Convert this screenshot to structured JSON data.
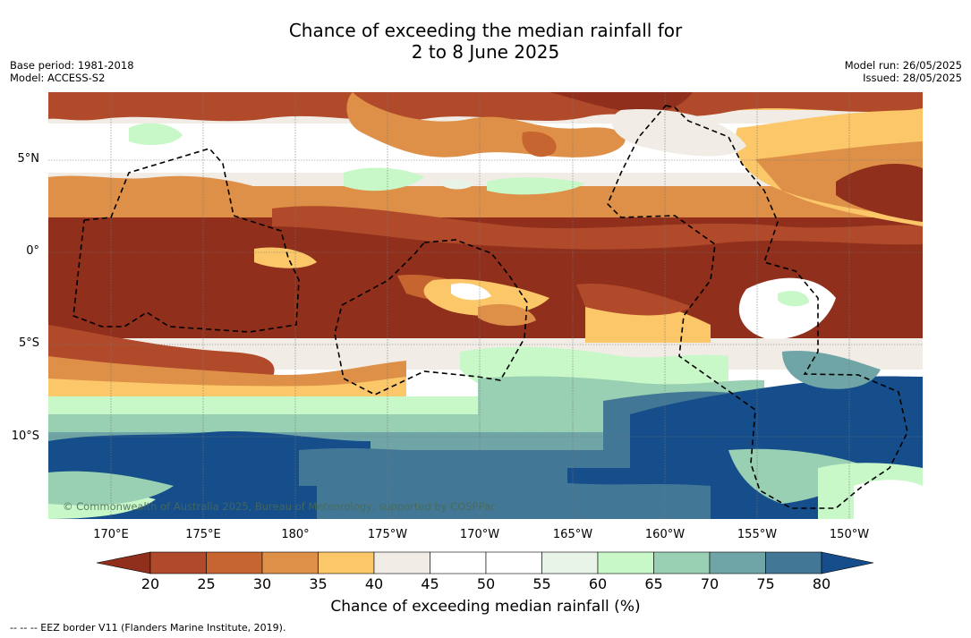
{
  "title_line1": "Chance of exceeding the median rainfall for",
  "title_line2": "2 to 8 June 2025",
  "base_period": "Base period: 1981-2018",
  "model": "Model: ACCESS-S2",
  "model_run": "Model run: 26/05/2025",
  "issued": "Issued: 28/05/2025",
  "copyright": "© Commonwealth of Australia 2025, Bureau of Meteorology, supported by COSPPac",
  "lat_labels": [
    "5°N",
    "0°",
    "5°S",
    "10°S"
  ],
  "lon_labels": [
    "170°E",
    "175°E",
    "180°",
    "175°W",
    "170°W",
    "165°W",
    "160°W",
    "155°W",
    "150°W"
  ],
  "colorbar": {
    "title": "Chance of exceeding median rainfall (%)",
    "ticks": [
      "20",
      "25",
      "30",
      "35",
      "40",
      "45",
      "50",
      "55",
      "60",
      "65",
      "70",
      "75",
      "80"
    ],
    "colors": [
      "#8f2f1c",
      "#b04a2a",
      "#c76530",
      "#de9048",
      "#fbc768",
      "#f1ede6",
      "#ffffff",
      "#ffffff",
      "#e8f4e8",
      "#c8f7c8",
      "#99cfb2",
      "#6fa5a6",
      "#427795",
      "#154e8b"
    ]
  },
  "footnote": "--  --  -- EEZ border V11 (Flanders Marine Institute, 2019).",
  "map_data": {
    "lat_range": [
      -14.3,
      8.6
    ],
    "lon_range": [
      167.4,
      212.5
    ],
    "grid": true,
    "eez_border": "dashed"
  }
}
